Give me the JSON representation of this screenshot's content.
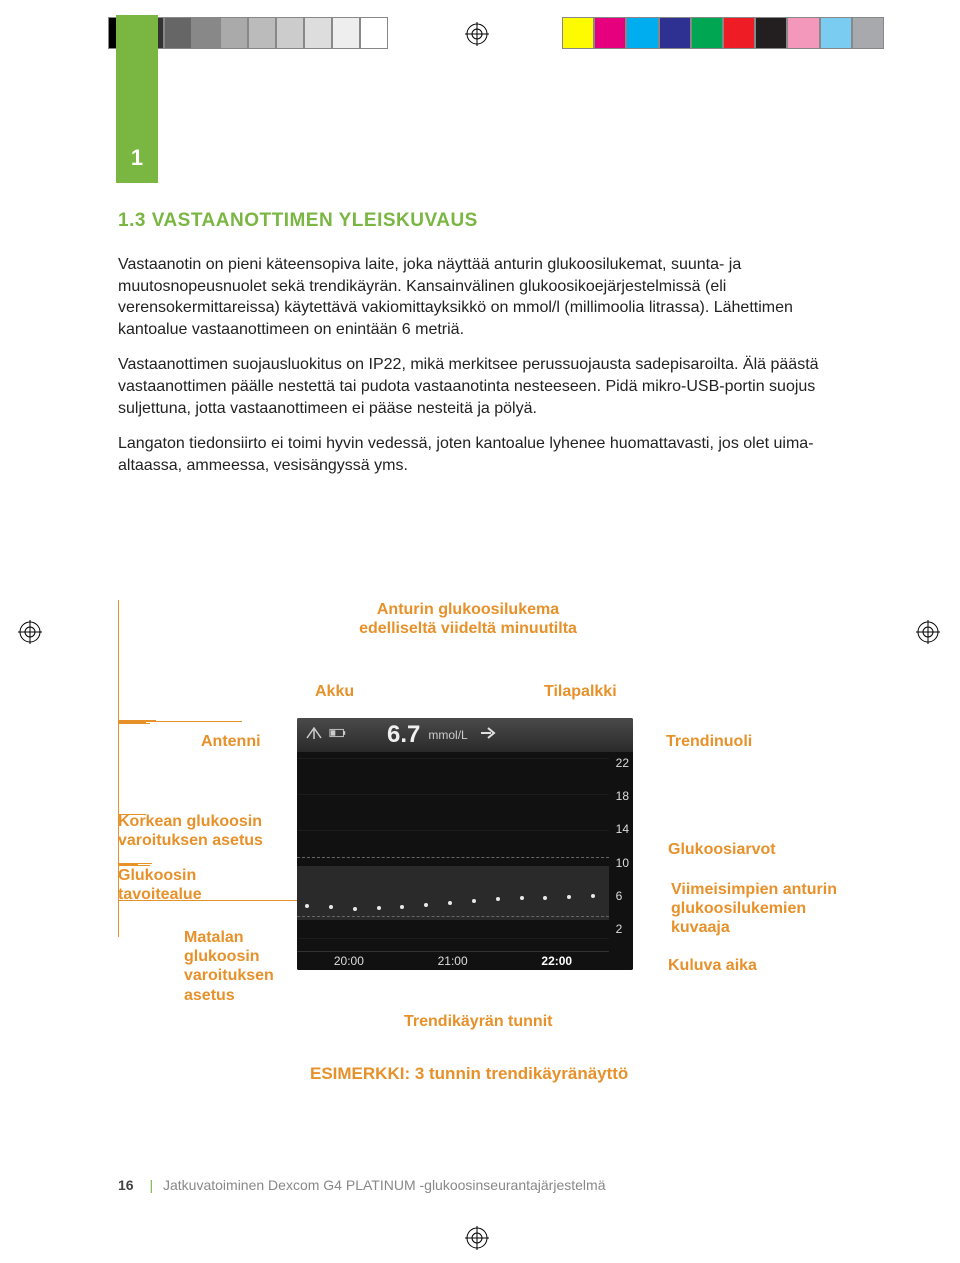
{
  "print_marks": {
    "left_swatches": [
      "#000000",
      "#333333",
      "#666666",
      "#888888",
      "#aaaaaa",
      "#bbbbbb",
      "#cccccc",
      "#dddddd",
      "#eeeeee",
      "#ffffff"
    ],
    "right_swatches": [
      "#fefb00",
      "#e6007e",
      "#00adee",
      "#2e3192",
      "#00a651",
      "#ee1c25",
      "#231f20",
      "#f397bb",
      "#7accf1",
      "#a7a9ac"
    ]
  },
  "side_tab": {
    "number": "1",
    "bg": "#7ab642"
  },
  "section": {
    "title": "1.3 VASTAANOTTIMEN YLEISKUVAUS",
    "paras": [
      "Vastaanotin on pieni käteensopiva laite, joka näyttää anturin glukoosilukemat, suunta- ja muutosnopeusnuolet sekä trendikäyrän. Kansainvälinen glukoosikoejärjestelmissä (eli verensokermittareissa) käytettävä vakiomittayksikkö on mmol/l (millimoolia litrassa). Lähettimen kantoalue vastaanottimeen on enintään 6 metriä.",
      "Vastaanottimen suojausluokitus on IP22, mikä merkitsee perussuojausta sadepisaroilta. Älä päästä vastaanottimen päälle nestettä tai pudota vastaanotinta nesteeseen. Pidä mikro-USB-portin suojus suljettuna, jotta vastaanottimeen ei pääse nesteitä ja pölyä.",
      "Langaton tiedonsiirto ei toimi hyvin vedessä, joten kantoalue lyhenee huomattavasti, jos olet uima-altaassa, ammeessa, vesisängyssä yms."
    ]
  },
  "diagram": {
    "callouts": {
      "reading_top1": "Anturin glukoosilukema",
      "reading_top2": "edelliseltä viideltä minuutilta",
      "battery": "Akku",
      "statusbar": "Tilapalkki",
      "antenna": "Antenni",
      "trend_arrow": "Trendinuoli",
      "high_alert": "Korkean glukoosin varoituksen asetus",
      "glucose_values": "Glukoosiarvot",
      "target_range": "Glukoosin tavoitealue",
      "recent_graph1": "Viimeisimpien anturin",
      "recent_graph2": "glukoosilukemien",
      "recent_graph3": "kuvaaja",
      "low_alert": "Matalan glukoosin varoituksen asetus",
      "current_time": "Kuluva aika",
      "trend_hours": "Trendikäyrän tunnit",
      "example": "ESIMERKKI: 3 tunnin trendikäyränäyttö"
    },
    "screen": {
      "reading_value": "6.7",
      "reading_unit": "mmol/L",
      "y_ticks": [
        "22",
        "18",
        "14",
        "10",
        "6",
        "2"
      ],
      "y_range": [
        2,
        22
      ],
      "target_band": [
        4,
        10
      ],
      "high_alert_y": 11,
      "low_alert_y": 4.5,
      "trend_points_y": [
        5.6,
        5.4,
        5.2,
        5.3,
        5.5,
        5.7,
        5.9,
        6.1,
        6.3,
        6.4,
        6.5,
        6.6,
        6.7
      ],
      "x_labels": [
        "20:00",
        "21:00",
        "22:00"
      ],
      "colors": {
        "bg": "#111111",
        "topbar_grad_a": "#4a4a4a",
        "topbar_grad_b": "#2a2a2a",
        "text": "#e4e4e4",
        "axis_text": "#dddddd",
        "target_band": "#2a2a2a",
        "dot": "#e8e8e8",
        "alert_line": "#666666"
      }
    },
    "callout_color": "#e7912b"
  },
  "footer": {
    "page": "16",
    "title": "Jatkuvatoiminen Dexcom G4 PLATINUM -glukoosinseurantajärjestelmä"
  }
}
